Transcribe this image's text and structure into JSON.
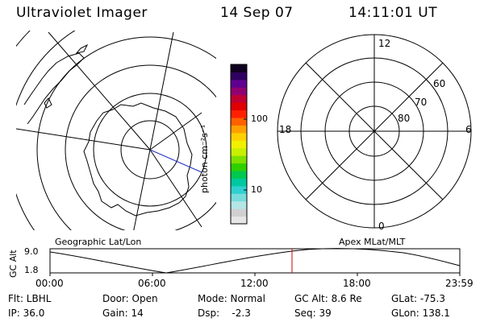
{
  "header": {
    "title": "Ultraviolet Imager",
    "date": "14 Sep 07",
    "time": "14:11:01 UT"
  },
  "colorbar": {
    "unit_label": "photon cm⁻²s⁻¹",
    "tick_labels": [
      "100",
      "10"
    ],
    "colors": [
      "#e6e6e6",
      "#d0d0d0",
      "#b4e6e6",
      "#78dcdc",
      "#30d0d0",
      "#00c8a0",
      "#00c850",
      "#30d000",
      "#80e000",
      "#c8f000",
      "#f0f000",
      "#ffd000",
      "#ffa000",
      "#ff6000",
      "#ff2000",
      "#e00000",
      "#c00030",
      "#900070",
      "#600090",
      "#300060",
      "#100020"
    ]
  },
  "polar_plot": {
    "labels": {
      "top": "12",
      "bottom": "0",
      "left": "18",
      "right": "6"
    },
    "lat_labels": [
      "60",
      "70",
      "80"
    ]
  },
  "timeline": {
    "y_axis_title": "GC Alt",
    "y_ticks": [
      "9.0",
      "1.8"
    ],
    "left_caption": "Geographic Lat/Lon",
    "right_caption": "Apex MLat/MLT",
    "x_ticks": [
      "00:00",
      "06:00",
      "12:00",
      "18:00",
      "23:59"
    ],
    "marker_color": "#d00000"
  },
  "status": {
    "flt": "Flt: LBHL",
    "ip": "IP: 36.0",
    "door": "Door: Open",
    "gain": "Gain: 14",
    "mode": "Mode: Normal",
    "dsp": "Dsp:    -2.3",
    "gc_alt": "GC Alt: 8.6 Re",
    "seq": "Seq: 39",
    "glat": "GLat: -75.3",
    "glon": "GLon: 138.1"
  }
}
